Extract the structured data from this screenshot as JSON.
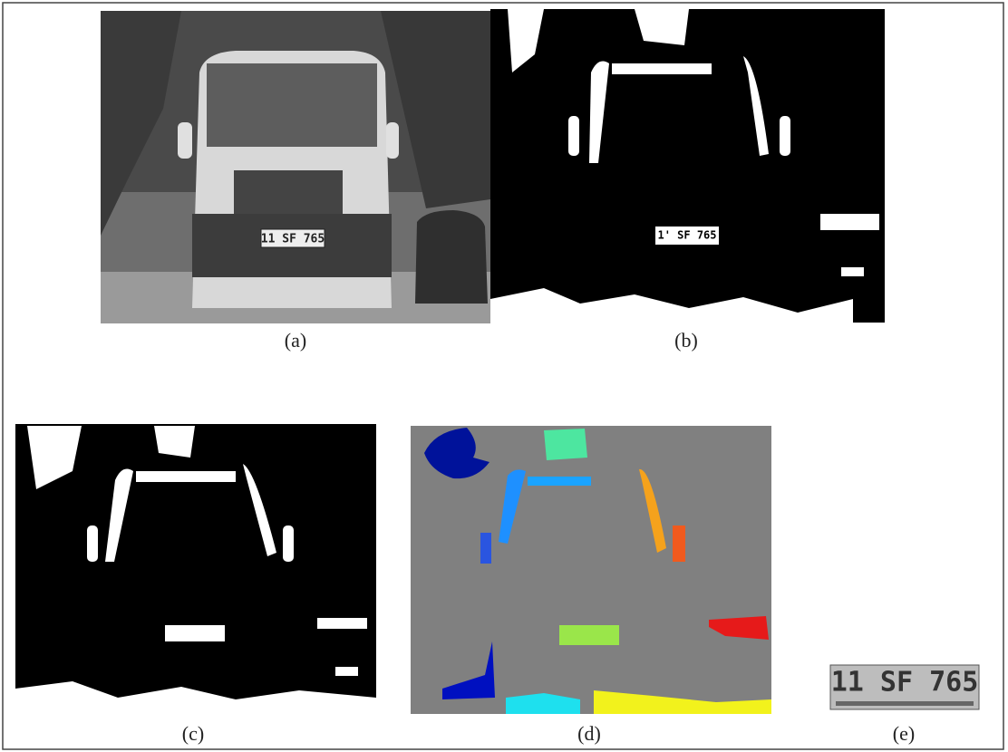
{
  "panels": [
    {
      "caption": "(a)",
      "plate": "11 SF 765"
    },
    {
      "caption": "(b)",
      "plate": "1' SF 765"
    },
    {
      "caption": "(c)"
    },
    {
      "caption": "(d)"
    },
    {
      "caption": "(e)",
      "plate": "11 SF 765"
    }
  ]
}
